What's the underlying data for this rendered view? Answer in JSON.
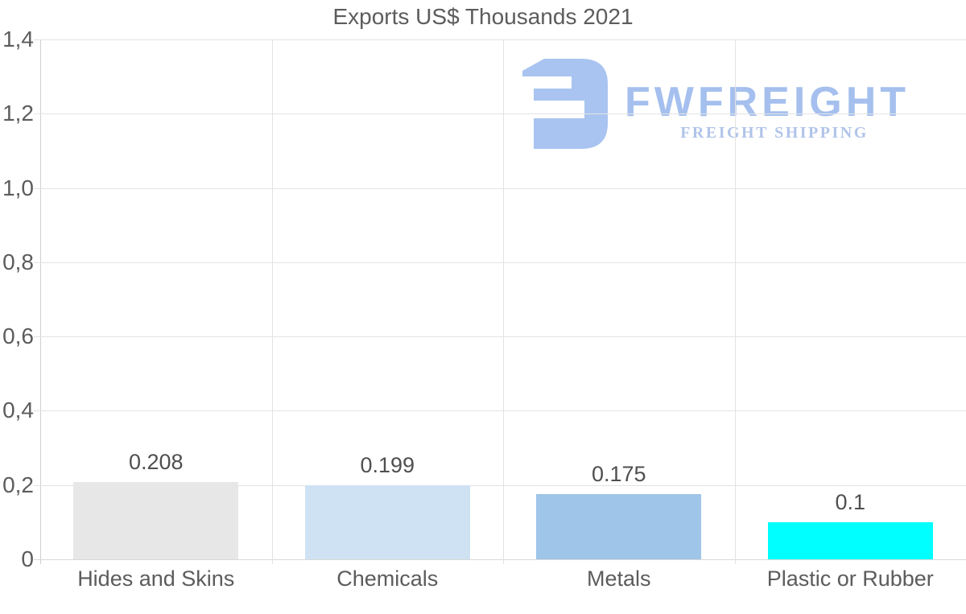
{
  "chart_data": {
    "type": "bar",
    "title": "Exports US$ Thousands 2021",
    "categories": [
      "Hides and Skins",
      "Chemicals",
      "Metals",
      "Plastic or Rubber"
    ],
    "values": [
      0.208,
      0.199,
      0.175,
      0.1
    ],
    "value_labels": [
      "0.208",
      "0.199",
      "0.175",
      "0.1"
    ],
    "bar_colors": [
      "#e7e7e7",
      "#cfe2f3",
      "#9fc5e8",
      "#00ffff"
    ],
    "ylim": [
      0,
      1.4
    ],
    "yticks": [
      0,
      0.2,
      0.4,
      0.6,
      0.8,
      1.0,
      1.2,
      1.4
    ],
    "ytick_labels": [
      "0",
      "0,2",
      "0,4",
      "0,6",
      "0,8",
      "1,0",
      "1,2",
      "1,4"
    ],
    "xlabel": "",
    "ylabel": "",
    "grid": true,
    "legend": "none"
  },
  "watermark": {
    "brand": "FWFREIGHT",
    "tagline": "FREIGHT SHIPPING",
    "logo_icon": "fwfreight-logo-mark"
  },
  "style": {
    "text_color": "#5c5c5c",
    "value_text_color": "#4f4f4f",
    "gridline_color": "#e3e3e3",
    "zero_line_color": "#d9d9d9",
    "axis_line_color": "#cfcfcf",
    "brand_color": "#a5c0ee",
    "logo_mark_color": "#a9c4f0",
    "tagline_color": "#b1c4e9",
    "background_color": "#ffffff"
  }
}
